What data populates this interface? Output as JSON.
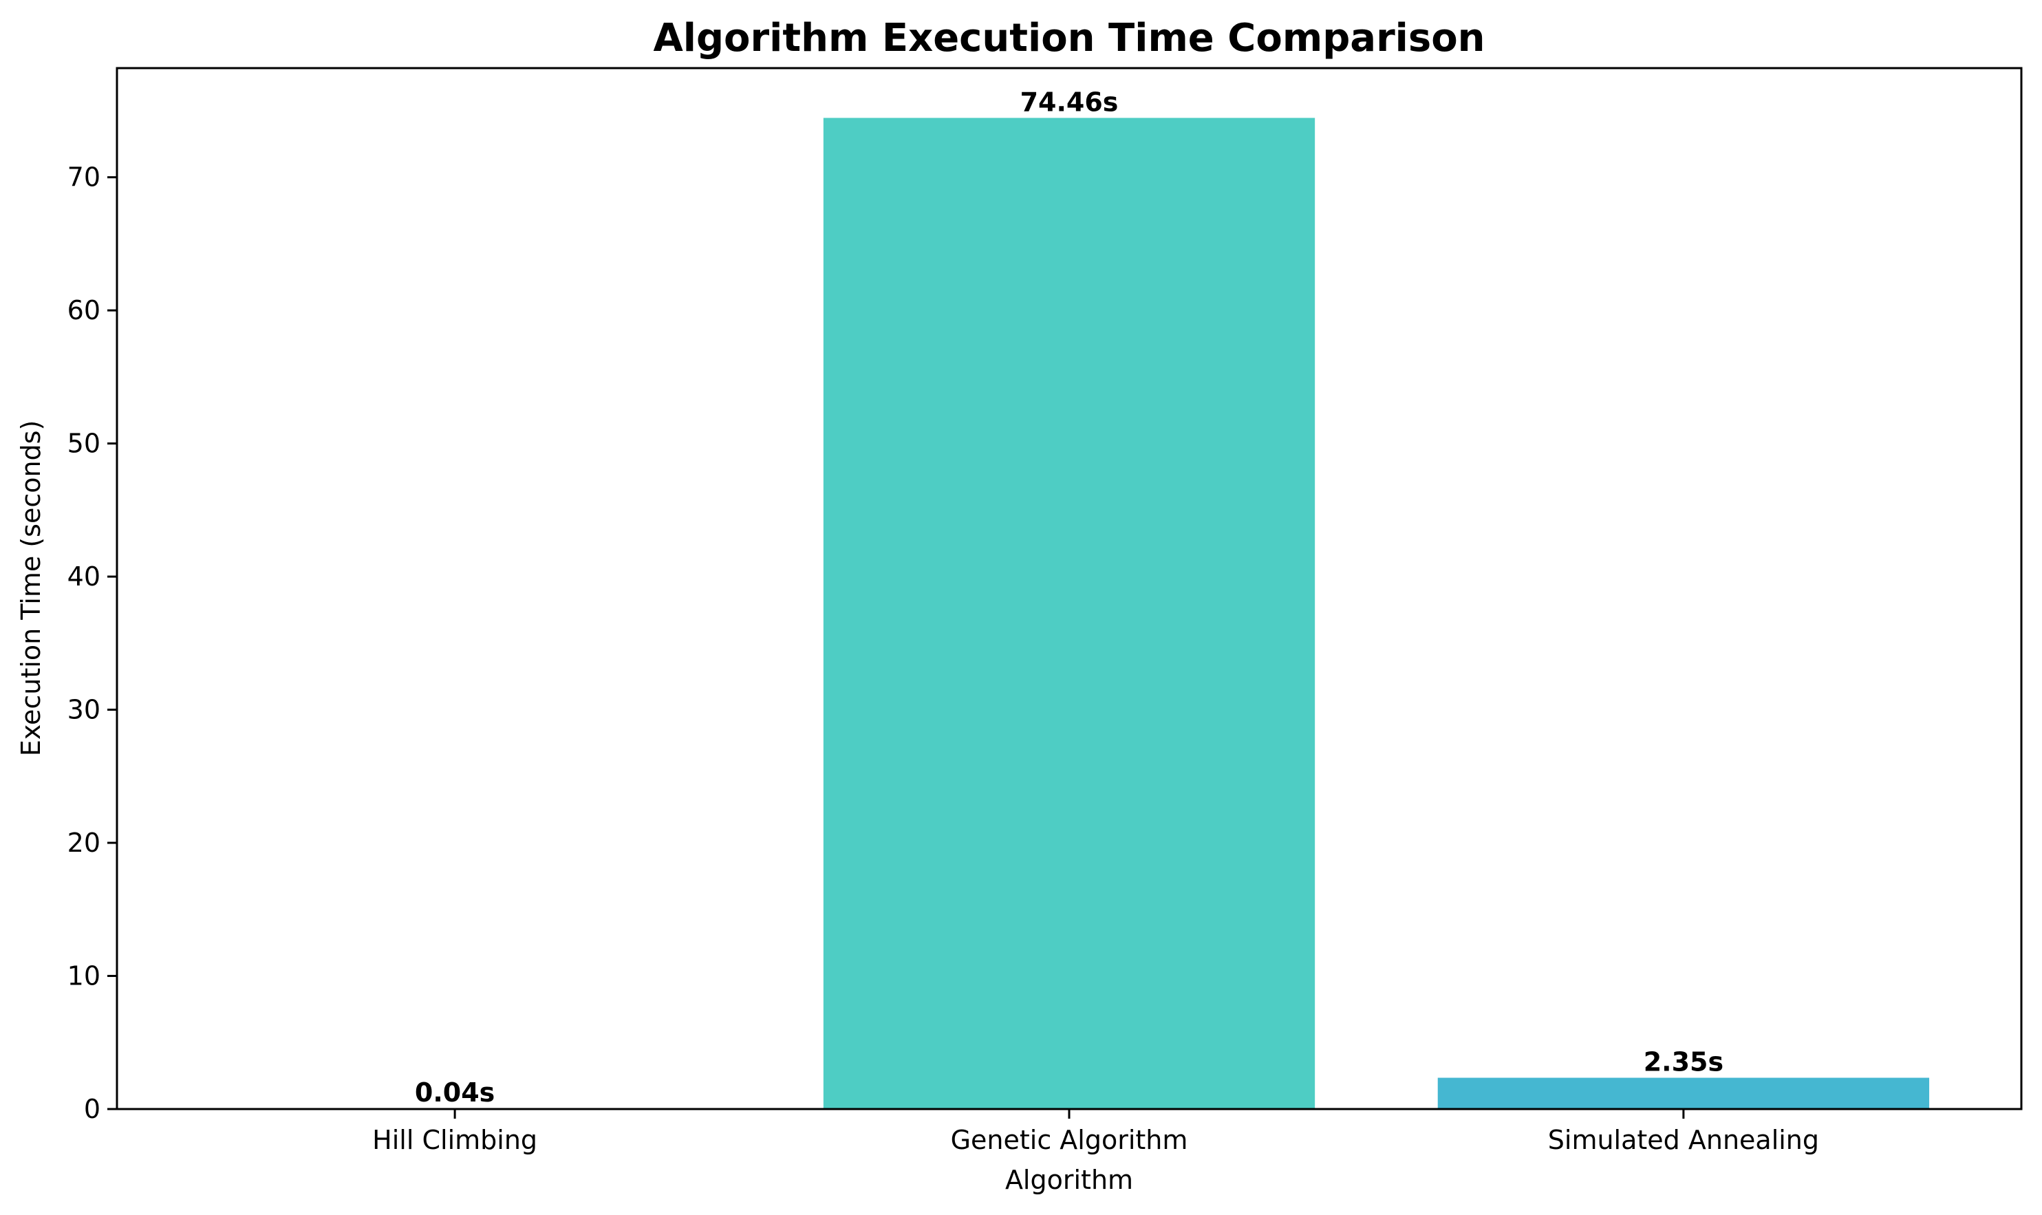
{
  "chart_data": {
    "type": "bar",
    "title": "Algorithm Execution Time Comparison",
    "xlabel": "Algorithm",
    "ylabel": "Execution Time (seconds)",
    "categories": [
      "Hill Climbing",
      "Genetic Algorithm",
      "Simulated Annealing"
    ],
    "values": [
      0.04,
      74.46,
      2.35
    ],
    "data_labels": [
      "0.04s",
      "74.46s",
      "2.35s"
    ],
    "colors": [
      "#ff6b6b",
      "#4ecdc4",
      "#45b7d1"
    ],
    "yticks": [
      0,
      10,
      20,
      30,
      40,
      50,
      60,
      70
    ],
    "ylim": [
      0,
      78.2
    ],
    "grid": false,
    "legend": "none"
  }
}
